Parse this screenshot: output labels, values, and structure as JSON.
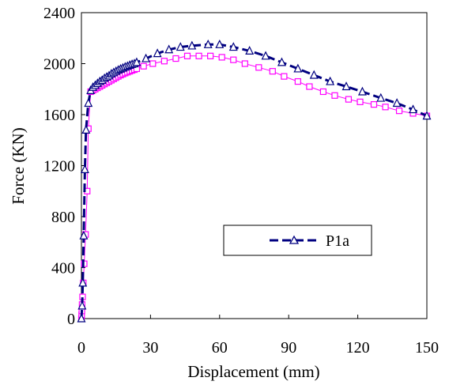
{
  "chart_data": {
    "type": "line",
    "title": "",
    "xlabel": "Displacement (mm)",
    "ylabel": "Force (KN)",
    "xlim": [
      0,
      150
    ],
    "ylim": [
      0,
      2400
    ],
    "x_ticks": [
      "0",
      "30",
      "60",
      "90",
      "120",
      "150"
    ],
    "y_ticks": [
      "0",
      "400",
      "800",
      "1200",
      "1600",
      "2000",
      "2400"
    ],
    "grid": false,
    "legend_position": "center-right",
    "series": [
      {
        "name": "P1a",
        "color": "#000080",
        "line_style": "dashed",
        "marker": "triangle",
        "x": [
          0,
          0.3,
          0.6,
          1.0,
          1.5,
          2.0,
          3.0,
          4,
          5,
          6,
          7,
          8,
          9,
          10,
          11,
          12,
          13,
          14,
          15,
          16,
          17,
          18,
          19,
          20,
          21,
          22,
          23,
          24,
          28,
          33,
          38,
          43,
          48,
          55,
          60,
          66,
          73,
          80,
          87,
          94,
          101,
          108,
          115,
          122,
          130,
          137,
          144,
          150
        ],
        "values": [
          0,
          100,
          280,
          650,
          1170,
          1480,
          1690,
          1790,
          1815,
          1830,
          1845,
          1860,
          1870,
          1885,
          1895,
          1905,
          1920,
          1930,
          1940,
          1950,
          1958,
          1966,
          1974,
          1980,
          1988,
          1995,
          2000,
          2010,
          2040,
          2080,
          2110,
          2130,
          2140,
          2150,
          2150,
          2130,
          2100,
          2060,
          2010,
          1960,
          1910,
          1860,
          1820,
          1780,
          1730,
          1690,
          1640,
          1590
        ]
      },
      {
        "name": "",
        "color": "#ff00ff",
        "line_style": "solid",
        "marker": "square",
        "x": [
          0,
          0.1,
          0.2,
          0.3,
          0.5,
          0.8,
          1.2,
          1.8,
          2.5,
          3,
          4,
          5,
          6,
          7,
          8,
          9,
          10,
          11,
          12,
          13,
          14,
          15,
          16,
          17,
          18,
          19,
          20,
          21,
          22,
          23,
          24,
          27,
          31,
          36,
          41,
          46,
          51,
          56,
          61,
          66,
          71,
          77,
          83,
          88,
          94,
          99,
          105,
          110,
          116,
          121,
          127,
          132,
          138,
          144,
          150
        ],
        "values": [
          0,
          30,
          60,
          110,
          170,
          280,
          430,
          660,
          1000,
          1490,
          1780,
          1790,
          1800,
          1810,
          1820,
          1830,
          1840,
          1850,
          1860,
          1870,
          1880,
          1890,
          1900,
          1910,
          1918,
          1926,
          1933,
          1940,
          1947,
          1953,
          1960,
          1980,
          2000,
          2020,
          2040,
          2060,
          2060,
          2060,
          2050,
          2030,
          2000,
          1970,
          1940,
          1900,
          1860,
          1820,
          1780,
          1750,
          1720,
          1700,
          1680,
          1660,
          1630,
          1610,
          1590
        ]
      }
    ]
  }
}
